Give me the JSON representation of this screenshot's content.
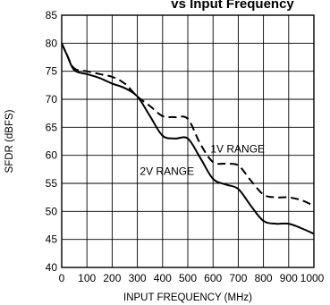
{
  "chart_data": {
    "type": "line",
    "title": "vs Input Frequency",
    "xlabel": "INPUT FREQUENCY (MHz)",
    "ylabel": "SFDR (dBFS)",
    "xlim": [
      0,
      1000
    ],
    "ylim": [
      40,
      85
    ],
    "grid": true,
    "x_ticks": [
      "0",
      "100",
      "200",
      "300",
      "400",
      "500",
      "600",
      "700",
      "800",
      "900",
      "1000"
    ],
    "y_ticks": [
      "40",
      "45",
      "50",
      "55",
      "60",
      "65",
      "70",
      "75",
      "80",
      "85"
    ],
    "series": [
      {
        "name": "1V RANGE",
        "style": "dashed",
        "color": "#000000",
        "x": [
          0,
          20,
          50,
          100,
          150,
          200,
          250,
          300,
          350,
          400,
          450,
          500,
          550,
          600,
          650,
          700,
          750,
          800,
          850,
          900,
          950,
          1000
        ],
        "y": [
          80.0,
          78.0,
          75.5,
          75.0,
          74.5,
          74.0,
          72.8,
          70.5,
          68.8,
          67.0,
          66.8,
          66.5,
          62.0,
          58.8,
          58.5,
          58.2,
          55.5,
          53.0,
          52.5,
          52.5,
          52.0,
          51.0
        ]
      },
      {
        "name": "2V RANGE",
        "style": "solid",
        "color": "#000000",
        "x": [
          0,
          20,
          50,
          100,
          150,
          200,
          250,
          300,
          350,
          400,
          450,
          500,
          550,
          600,
          650,
          700,
          750,
          800,
          850,
          900,
          950,
          1000
        ],
        "y": [
          80.0,
          78.0,
          75.2,
          74.5,
          73.8,
          72.8,
          72.0,
          70.5,
          67.0,
          63.5,
          63.0,
          63.0,
          59.5,
          55.8,
          54.8,
          54.0,
          51.0,
          48.3,
          47.8,
          47.8,
          47.0,
          46.0
        ]
      }
    ]
  }
}
